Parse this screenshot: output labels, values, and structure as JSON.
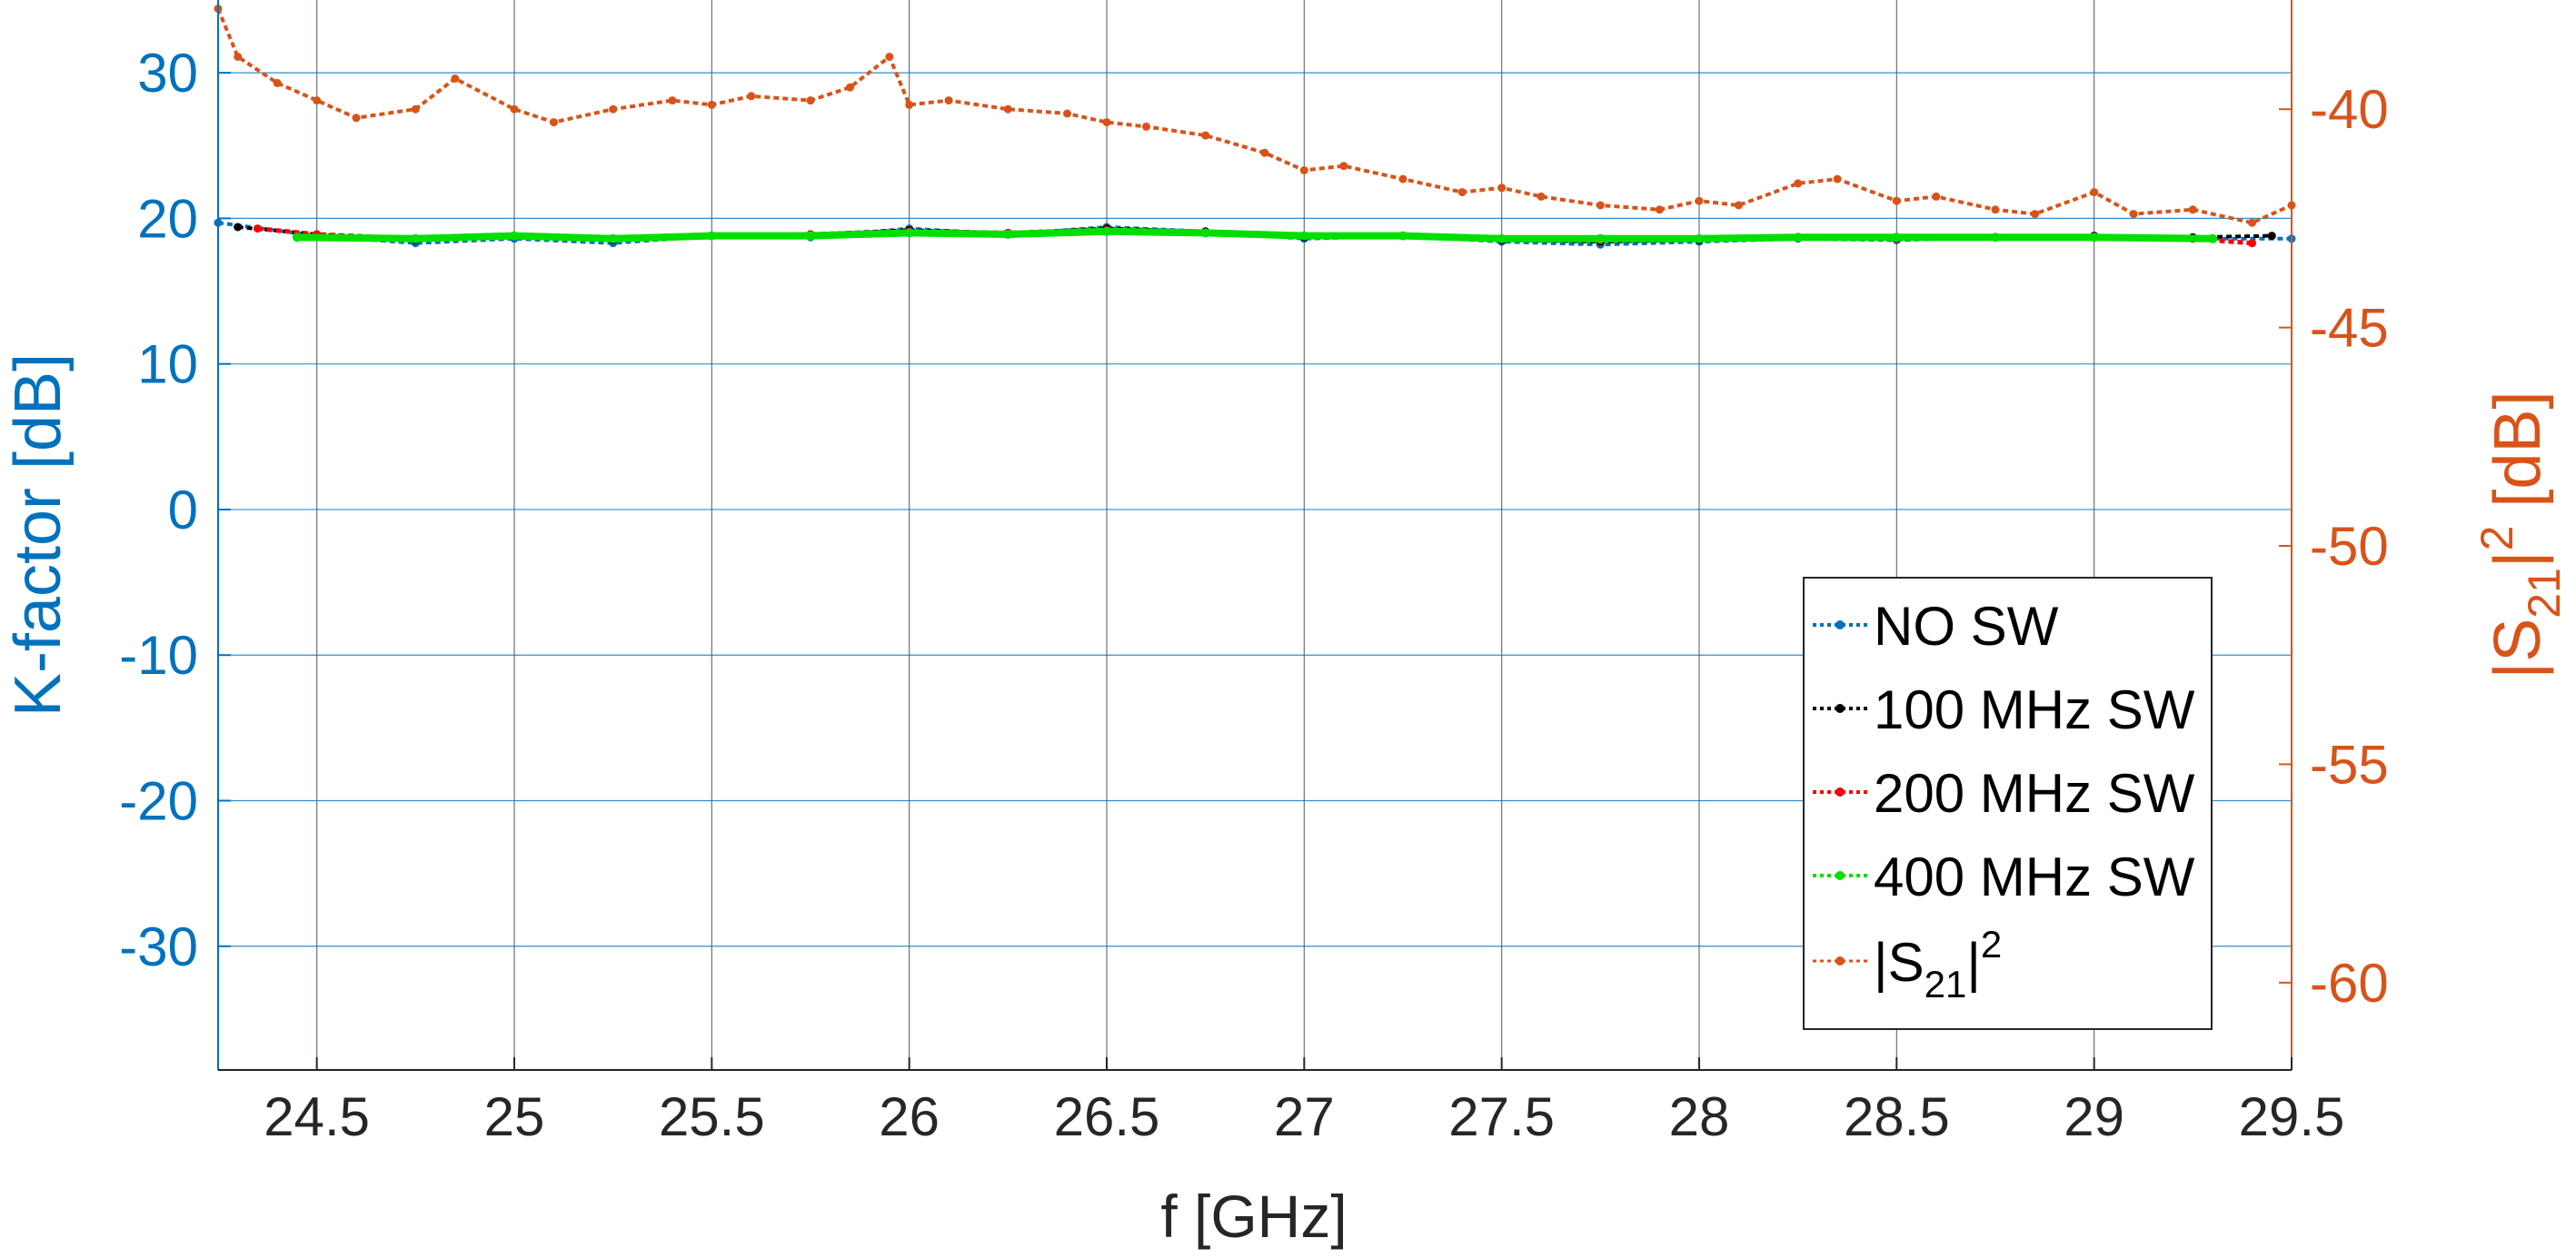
{
  "chart_data": {
    "type": "line",
    "xlabel": "f [GHz]",
    "ylabel_left": "K-factor [dB]",
    "ylabel_right": {
      "base": "|S",
      "sub": "21",
      "mid": "|",
      "sup": "2",
      "unit": " [dB]"
    },
    "xlim": [
      24.25,
      29.5
    ],
    "ylim_left": [
      -38.5,
      35
    ],
    "ylim_right": [
      -62,
      -37.5
    ],
    "x_ticks": [
      "24.5",
      "25",
      "25.5",
      "26",
      "26.5",
      "27",
      "27.5",
      "28",
      "28.5",
      "29",
      "29.5"
    ],
    "y_left_ticks": [
      "30",
      "20",
      "10",
      "0",
      "-10",
      "-20",
      "-30"
    ],
    "y_right_ticks": [
      "-40",
      "-45",
      "-50",
      "-55",
      "-60"
    ],
    "grid": true,
    "legend_position": "bottom-right",
    "colors": {
      "no_sw": "#0072BD",
      "sw100": "#000000",
      "sw200": "#FF0000",
      "sw400": "#00E000",
      "s21": "#D95319"
    },
    "series": [
      {
        "name": "NO SW",
        "axis": "left",
        "color": "#0072BD",
        "x": [
          24.25,
          24.5,
          24.75,
          25.0,
          25.25,
          25.5,
          25.75,
          26.0,
          26.25,
          26.5,
          26.75,
          27.0,
          27.25,
          27.5,
          27.75,
          28.0,
          28.25,
          28.5,
          28.75,
          29.0,
          29.25,
          29.5
        ],
        "y": [
          19.7,
          18.8,
          18.3,
          18.6,
          18.3,
          18.8,
          18.7,
          19.3,
          18.9,
          19.4,
          19.1,
          18.6,
          18.8,
          18.4,
          18.2,
          18.4,
          18.6,
          18.5,
          18.7,
          18.8,
          18.6,
          18.6
        ]
      },
      {
        "name": "100 MHz SW",
        "axis": "left",
        "color": "#000000",
        "x": [
          24.3,
          24.5,
          24.75,
          25.0,
          25.25,
          25.5,
          25.75,
          26.0,
          26.25,
          26.5,
          26.75,
          27.0,
          27.25,
          27.5,
          27.75,
          28.0,
          28.25,
          28.5,
          28.75,
          29.0,
          29.25,
          29.45
        ],
        "y": [
          19.4,
          18.9,
          18.5,
          18.8,
          18.5,
          18.8,
          18.9,
          19.2,
          19.0,
          19.3,
          19.1,
          18.7,
          18.8,
          18.5,
          18.4,
          18.5,
          18.7,
          18.6,
          18.7,
          18.8,
          18.7,
          18.8
        ]
      },
      {
        "name": "200 MHz SW",
        "axis": "left",
        "color": "#FF0000",
        "x": [
          24.35,
          24.5,
          24.75,
          25.0,
          25.25,
          25.5,
          25.75,
          26.0,
          26.25,
          26.5,
          26.75,
          27.0,
          27.25,
          27.5,
          27.75,
          28.0,
          28.25,
          28.5,
          28.75,
          29.0,
          29.25,
          29.4
        ],
        "y": [
          19.3,
          18.9,
          18.6,
          18.8,
          18.6,
          18.8,
          18.9,
          19.1,
          19.0,
          19.2,
          19.0,
          18.8,
          18.8,
          18.6,
          18.5,
          18.6,
          18.7,
          18.6,
          18.7,
          18.7,
          18.6,
          18.3
        ]
      },
      {
        "name": "400 MHz SW",
        "axis": "left",
        "color": "#00E000",
        "x": [
          24.45,
          24.75,
          25.0,
          25.25,
          25.5,
          25.75,
          26.0,
          26.25,
          26.5,
          26.75,
          27.0,
          27.25,
          27.5,
          27.75,
          28.0,
          28.25,
          28.5,
          28.75,
          29.0,
          29.3
        ],
        "y": [
          18.7,
          18.6,
          18.8,
          18.6,
          18.8,
          18.8,
          19.0,
          18.9,
          19.1,
          19.0,
          18.8,
          18.8,
          18.6,
          18.6,
          18.6,
          18.7,
          18.7,
          18.7,
          18.7,
          18.6
        ]
      },
      {
        "name": "|S21|²",
        "axis": "right",
        "color": "#D95319",
        "x": [
          24.25,
          24.3,
          24.4,
          24.5,
          24.6,
          24.75,
          24.85,
          25.0,
          25.1,
          25.25,
          25.4,
          25.5,
          25.6,
          25.75,
          25.85,
          25.95,
          26.0,
          26.1,
          26.25,
          26.4,
          26.5,
          26.6,
          26.75,
          26.9,
          27.0,
          27.1,
          27.25,
          27.4,
          27.5,
          27.6,
          27.75,
          27.9,
          28.0,
          28.1,
          28.25,
          28.35,
          28.5,
          28.6,
          28.75,
          28.85,
          29.0,
          29.1,
          29.25,
          29.4,
          29.5
        ],
        "y": [
          -37.7,
          -38.8,
          -39.4,
          -39.8,
          -40.2,
          -40.0,
          -39.3,
          -40.0,
          -40.3,
          -40.0,
          -39.8,
          -39.9,
          -39.7,
          -39.8,
          -39.5,
          -38.8,
          -39.9,
          -39.8,
          -40.0,
          -40.1,
          -40.3,
          -40.4,
          -40.6,
          -41.0,
          -41.4,
          -41.3,
          -41.6,
          -41.9,
          -41.8,
          -42.0,
          -42.2,
          -42.3,
          -42.1,
          -42.2,
          -41.7,
          -41.6,
          -42.1,
          -42.0,
          -42.3,
          -42.4,
          -41.9,
          -42.4,
          -42.3,
          -42.6,
          -42.2
        ]
      }
    ]
  },
  "legend": {
    "items": [
      {
        "label": "NO SW",
        "color": "#0072BD"
      },
      {
        "label": "100 MHz SW",
        "color": "#000000"
      },
      {
        "label": "200 MHz SW",
        "color": "#FF0000"
      },
      {
        "label": "400 MHz SW",
        "color": "#00E000"
      }
    ],
    "s21": {
      "base": "|S",
      "sub": "21",
      "mid": "|",
      "sup": "2",
      "color": "#D95319"
    }
  }
}
